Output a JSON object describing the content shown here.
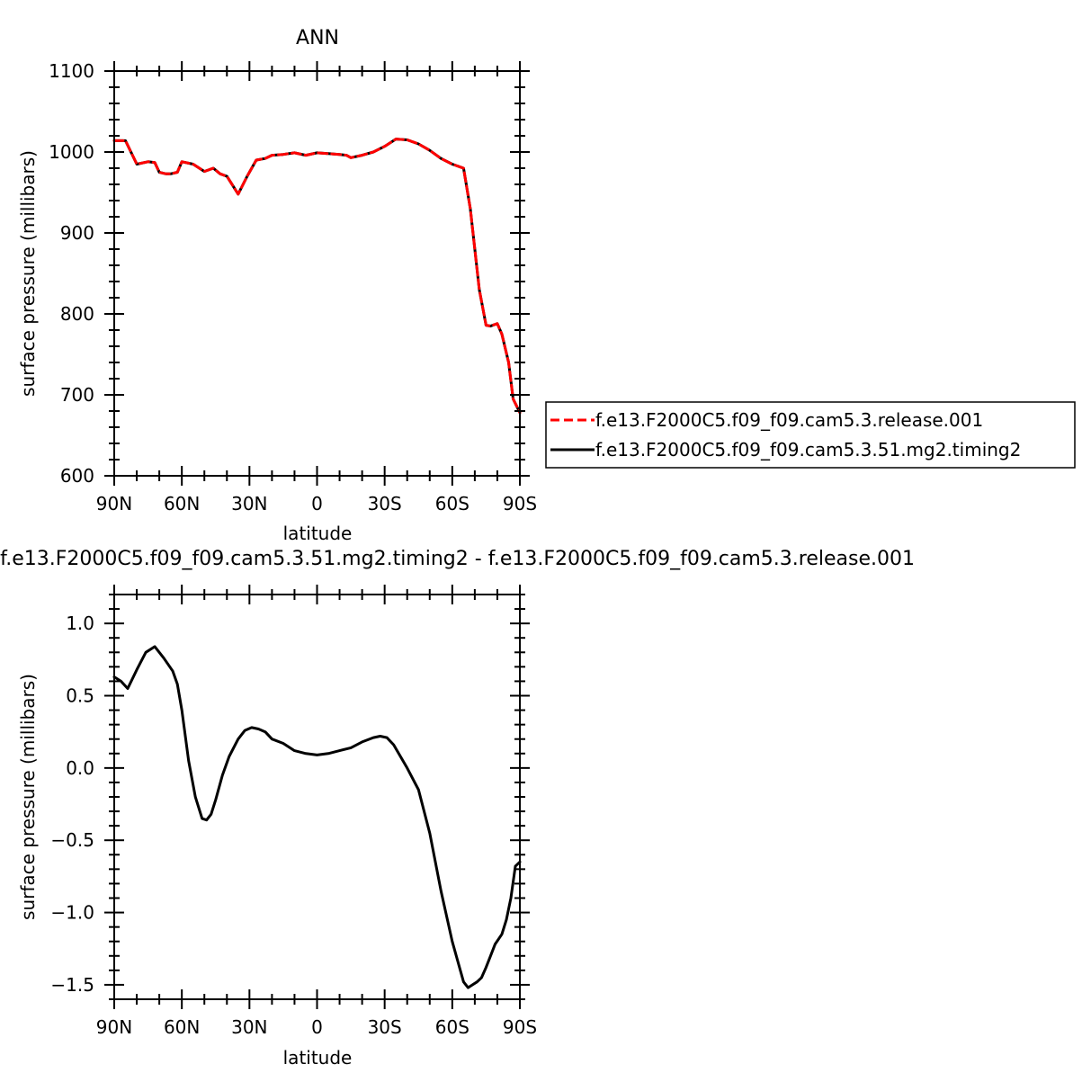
{
  "chart_data": [
    {
      "type": "line",
      "title": "ANN",
      "xlabel": "latitude",
      "ylabel": "surface pressure (millibars)",
      "xlim": [
        90,
        -90
      ],
      "ylim": [
        600,
        1100
      ],
      "xticks": [
        {
          "value": 90,
          "label": "90N"
        },
        {
          "value": 60,
          "label": "60N"
        },
        {
          "value": 30,
          "label": "30N"
        },
        {
          "value": 0,
          "label": "0"
        },
        {
          "value": -30,
          "label": "30S"
        },
        {
          "value": -60,
          "label": "60S"
        },
        {
          "value": -90,
          "label": "90S"
        }
      ],
      "yticks": [
        {
          "value": 600,
          "label": "600"
        },
        {
          "value": 700,
          "label": "700"
        },
        {
          "value": 800,
          "label": "800"
        },
        {
          "value": 900,
          "label": "900"
        },
        {
          "value": 1000,
          "label": "1000"
        },
        {
          "value": 1100,
          "label": "1100"
        }
      ],
      "legend_position": "right",
      "x": [
        90,
        85,
        80,
        75,
        72,
        70,
        67,
        65,
        62,
        60,
        55,
        50,
        46,
        43,
        40,
        35,
        31,
        27,
        23,
        20,
        15,
        10,
        5,
        0,
        -5,
        -10,
        -13,
        -15,
        -20,
        -25,
        -30,
        -35,
        -40,
        -45,
        -50,
        -55,
        -60,
        -65,
        -68,
        -70,
        -72,
        -75,
        -77,
        -80,
        -82,
        -85,
        -87,
        -90
      ],
      "series": [
        {
          "name": "f.e13.F2000C5.f09_f09.cam5.3.release.001",
          "color": "#ff0000",
          "dash": "dashed",
          "values": [
            1014,
            1014,
            985,
            988,
            987,
            975,
            973,
            973,
            975,
            988,
            985,
            976,
            980,
            973,
            970,
            948,
            970,
            990,
            992,
            996,
            997,
            999,
            996,
            999,
            998,
            997,
            996,
            993,
            996,
            1000,
            1007,
            1016,
            1015,
            1010,
            1002,
            992,
            985,
            980,
            930,
            880,
            830,
            786,
            785,
            788,
            775,
            740,
            695,
            678
          ]
        },
        {
          "name": "f.e13.F2000C5.f09_f09.cam5.3.51.mg2.timing2",
          "color": "#000000",
          "dash": "solid",
          "values": [
            1014,
            1014,
            985,
            988,
            987,
            975,
            973,
            973,
            975,
            988,
            985,
            976,
            980,
            973,
            970,
            948,
            970,
            990,
            992,
            996,
            997,
            999,
            996,
            999,
            998,
            997,
            996,
            993,
            996,
            1000,
            1007,
            1016,
            1015,
            1010,
            1002,
            992,
            985,
            980,
            930,
            880,
            830,
            786,
            785,
            788,
            775,
            740,
            695,
            678
          ]
        }
      ]
    },
    {
      "type": "line",
      "title": "f.e13.F2000C5.f09_f09.cam5.3.51.mg2.timing2 - f.e13.F2000C5.f09_f09.cam5.3.release.001",
      "xlabel": "latitude",
      "ylabel": "surface pressure (millibars)",
      "xlim": [
        90,
        -90
      ],
      "ylim": [
        -1.6,
        1.2
      ],
      "xticks": [
        {
          "value": 90,
          "label": "90N"
        },
        {
          "value": 60,
          "label": "60N"
        },
        {
          "value": 30,
          "label": "30N"
        },
        {
          "value": 0,
          "label": "0"
        },
        {
          "value": -30,
          "label": "30S"
        },
        {
          "value": -60,
          "label": "60S"
        },
        {
          "value": -90,
          "label": "90S"
        }
      ],
      "yticks": [
        {
          "value": 1.0,
          "label": "1.0"
        },
        {
          "value": 0.5,
          "label": "0.5"
        },
        {
          "value": 0.0,
          "label": "0.0"
        },
        {
          "value": -0.5,
          "label": "−0.5"
        },
        {
          "value": -1.0,
          "label": "−1.0"
        },
        {
          "value": -1.5,
          "label": "−1.5"
        }
      ],
      "x": [
        90,
        87,
        84,
        80,
        76,
        72,
        68,
        64,
        62,
        60,
        57,
        54,
        51,
        49,
        47,
        45,
        42,
        39,
        35,
        32,
        29,
        26,
        23,
        20,
        15,
        10,
        5,
        0,
        -5,
        -10,
        -15,
        -20,
        -25,
        -28,
        -31,
        -34,
        -40,
        -45,
        -50,
        -55,
        -60,
        -65,
        -67,
        -69,
        -71,
        -73,
        -75,
        -77,
        -79,
        -82,
        -84,
        -86,
        -88,
        -90
      ],
      "series": [
        {
          "name": "",
          "color": "#000000",
          "dash": "solid",
          "values": [
            0.63,
            0.6,
            0.55,
            0.68,
            0.8,
            0.84,
            0.76,
            0.67,
            0.58,
            0.4,
            0.05,
            -0.2,
            -0.35,
            -0.36,
            -0.32,
            -0.22,
            -0.05,
            0.08,
            0.2,
            0.26,
            0.28,
            0.27,
            0.25,
            0.2,
            0.17,
            0.12,
            0.1,
            0.09,
            0.1,
            0.12,
            0.14,
            0.18,
            0.21,
            0.22,
            0.21,
            0.16,
            0.0,
            -0.15,
            -0.45,
            -0.85,
            -1.2,
            -1.48,
            -1.52,
            -1.5,
            -1.48,
            -1.45,
            -1.38,
            -1.3,
            -1.22,
            -1.15,
            -1.05,
            -0.9,
            -0.68,
            -0.65
          ]
        }
      ]
    }
  ]
}
